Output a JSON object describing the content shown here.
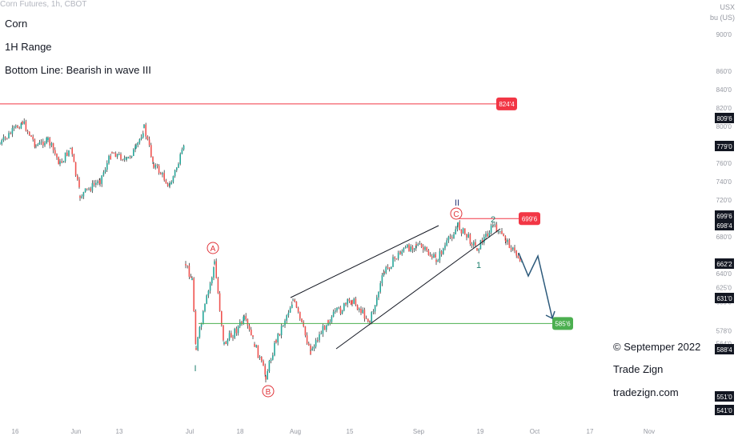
{
  "header": {
    "symbol": "Corn Futures, 1h, CBOT",
    "unit_line1": "USX",
    "unit_line2": "bu (US)"
  },
  "annotations": {
    "line1": "Corn",
    "line2": "1H Range",
    "line3": "Bottom Line: Bearish in wave III"
  },
  "notes": {
    "copyright": "© Septemper 2022",
    "brand": "Trade Zign",
    "site": "tradezign.com"
  },
  "colors": {
    "up": "#26a69a",
    "down": "#ef5350",
    "candle": "#1f1f1f",
    "red_line": "#f23645",
    "green_line": "#4caf50",
    "projection": "#2d5a7b"
  },
  "chart_data": {
    "type": "candlestick",
    "y_axis_ticks": [
      "900'0",
      "860'0",
      "840'0",
      "820'0",
      "800'0",
      "780'0",
      "760'0",
      "740'0",
      "720'0",
      "680'0",
      "640'0",
      "625'0",
      "609'0",
      "578'0",
      "564'0"
    ],
    "x_axis_ticks": [
      "16",
      "Jun",
      "13",
      "Jul",
      "18",
      "Aug",
      "15",
      "Sep",
      "19",
      "Oct",
      "17",
      "Nov"
    ],
    "price_labels": [
      {
        "value": "809'6",
        "style": "dark"
      },
      {
        "value": "779'0",
        "style": "dark"
      },
      {
        "value": "699'6",
        "style": "dark"
      },
      {
        "value": "698'4",
        "style": "dark"
      },
      {
        "value": "662'2",
        "style": "dark"
      },
      {
        "value": "631'0",
        "style": "dark"
      },
      {
        "value": "588'4",
        "style": "dark"
      },
      {
        "value": "551'0",
        "style": "dark"
      },
      {
        "value": "541'0",
        "style": "dark"
      }
    ],
    "horizontal_levels": [
      {
        "value": "824'4",
        "color": "red"
      },
      {
        "value": "699'6",
        "color": "red"
      },
      {
        "value": "585'6",
        "color": "green"
      }
    ],
    "wave_labels": [
      {
        "label": "A",
        "circled": true,
        "color": "red"
      },
      {
        "label": "B",
        "circled": true,
        "color": "red"
      },
      {
        "label": "C",
        "circled": true,
        "color": "red"
      },
      {
        "label": "I",
        "circled": false,
        "color": "teal"
      },
      {
        "label": "II",
        "circled": false,
        "color": "navy"
      },
      {
        "label": "1",
        "circled": false,
        "color": "teal"
      },
      {
        "label": "2",
        "circled": false,
        "color": "teal"
      }
    ]
  }
}
